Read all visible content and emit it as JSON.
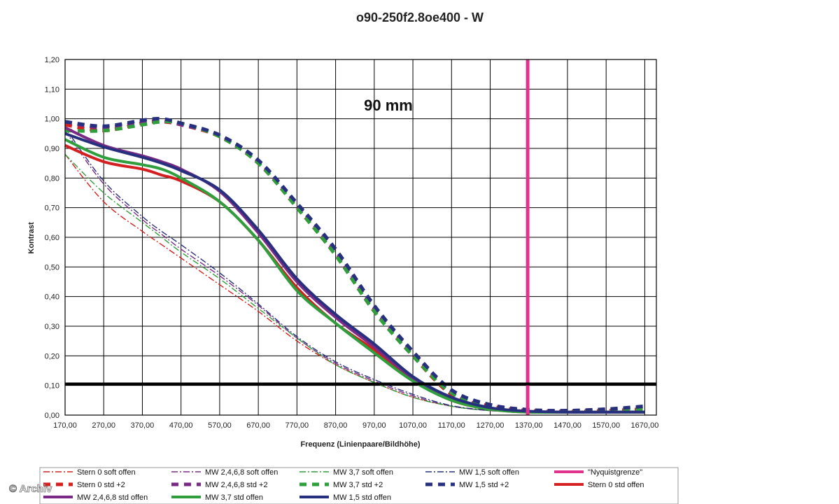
{
  "chart_data": {
    "type": "line",
    "title": "o90-250f2.8oe400 - W",
    "annotation": "90 mm",
    "xlabel": "Frequenz (Linienpaare/Bildhöhe)",
    "ylabel": "Kontrast",
    "xlim": [
      170,
      1700
    ],
    "ylim": [
      0,
      1.2
    ],
    "x_ticks": [
      "170,00",
      "270,00",
      "370,00",
      "470,00",
      "570,00",
      "670,00",
      "770,00",
      "870,00",
      "970,00",
      "1070,00",
      "1170,00",
      "1270,00",
      "1370,00",
      "1470,00",
      "1570,00",
      "1670,00"
    ],
    "y_ticks": [
      "0,00",
      "0,10",
      "0,20",
      "0,30",
      "0,40",
      "0,50",
      "0,60",
      "0,70",
      "0,80",
      "0,90",
      "1,00",
      "1,10",
      "1,20"
    ],
    "grid": true,
    "legend_position": "bottom",
    "credit": "© Archiv",
    "reference_lines": [
      {
        "name": "\"Nyquistgrenze\"",
        "orientation": "vertical",
        "value": 1367,
        "color": "#e0338e"
      },
      {
        "orientation": "horizontal",
        "value": 0.105,
        "color": "#000000"
      }
    ],
    "x": [
      170,
      270,
      370,
      420,
      470,
      570,
      670,
      770,
      870,
      970,
      1070,
      1170,
      1270,
      1370,
      1470,
      1570,
      1670
    ],
    "series": [
      {
        "name": "Stern 0 soft offen",
        "style": "dashdot",
        "color": "#d42020",
        "values": [
          0.88,
          0.72,
          0.62,
          0.575,
          0.53,
          0.44,
          0.35,
          0.25,
          0.17,
          0.11,
          0.06,
          0.03,
          0.015,
          0.01,
          0.01,
          0.01,
          0.01
        ]
      },
      {
        "name": "MW 2,4,6,8 soft offen",
        "style": "dashdot",
        "color": "#7a2a86",
        "values": [
          0.96,
          0.78,
          0.66,
          0.61,
          0.56,
          0.47,
          0.37,
          0.26,
          0.175,
          0.115,
          0.065,
          0.03,
          0.015,
          0.01,
          0.01,
          0.01,
          0.01
        ]
      },
      {
        "name": "MW 3,7 soft offen",
        "style": "dashdot",
        "color": "#2f9e3c",
        "values": [
          0.88,
          0.75,
          0.65,
          0.6,
          0.55,
          0.46,
          0.36,
          0.26,
          0.17,
          0.11,
          0.06,
          0.03,
          0.015,
          0.01,
          0.01,
          0.01,
          0.01
        ]
      },
      {
        "name": "MW 1,5 soft offen",
        "style": "dashdot",
        "color": "#27307e",
        "values": [
          0.97,
          0.79,
          0.67,
          0.62,
          0.575,
          0.48,
          0.375,
          0.265,
          0.18,
          0.12,
          0.07,
          0.032,
          0.016,
          0.01,
          0.01,
          0.01,
          0.01
        ]
      },
      {
        "name": "Stern 0 std +2",
        "style": "dash",
        "color": "#d42020",
        "values": [
          0.98,
          0.96,
          0.985,
          0.99,
          0.98,
          0.94,
          0.85,
          0.7,
          0.54,
          0.35,
          0.2,
          0.07,
          0.03,
          0.015,
          0.012,
          0.015,
          0.02
        ]
      },
      {
        "name": "MW 2,4,6,8 std +2",
        "style": "dash",
        "color": "#7a2a86",
        "values": [
          0.99,
          0.97,
          0.99,
          0.995,
          0.98,
          0.945,
          0.855,
          0.71,
          0.55,
          0.36,
          0.21,
          0.08,
          0.035,
          0.018,
          0.015,
          0.02,
          0.025
        ]
      },
      {
        "name": "MW 3,7 std +2",
        "style": "dash",
        "color": "#2f9e3c",
        "values": [
          0.96,
          0.96,
          0.98,
          0.99,
          0.985,
          0.94,
          0.85,
          0.7,
          0.54,
          0.35,
          0.2,
          0.075,
          0.03,
          0.015,
          0.012,
          0.018,
          0.02
        ]
      },
      {
        "name": "MW 1,5 std +2",
        "style": "dash",
        "color": "#27307e",
        "values": [
          0.99,
          0.975,
          0.995,
          1.0,
          0.985,
          0.945,
          0.86,
          0.715,
          0.56,
          0.37,
          0.215,
          0.085,
          0.035,
          0.018,
          0.015,
          0.02,
          0.03
        ]
      },
      {
        "name": "Stern 0 std offen",
        "style": "solid",
        "color": "#d42020",
        "values": [
          0.91,
          0.855,
          0.83,
          0.81,
          0.79,
          0.72,
          0.59,
          0.43,
          0.31,
          0.22,
          0.12,
          0.05,
          0.02,
          0.01,
          0.01,
          0.01,
          0.01
        ]
      },
      {
        "name": "MW 2,4,6,8 std offen",
        "style": "solid",
        "color": "#7a2a86",
        "values": [
          0.97,
          0.91,
          0.875,
          0.855,
          0.83,
          0.755,
          0.615,
          0.45,
          0.33,
          0.23,
          0.125,
          0.055,
          0.022,
          0.012,
          0.01,
          0.01,
          0.01
        ]
      },
      {
        "name": "MW 3,7 std offen",
        "style": "solid",
        "color": "#2f9e3c",
        "values": [
          0.93,
          0.87,
          0.845,
          0.83,
          0.8,
          0.72,
          0.59,
          0.42,
          0.31,
          0.21,
          0.115,
          0.05,
          0.02,
          0.01,
          0.01,
          0.01,
          0.01
        ]
      },
      {
        "name": "MW 1,5 std offen",
        "style": "solid",
        "color": "#27307e",
        "values": [
          0.95,
          0.905,
          0.87,
          0.85,
          0.825,
          0.76,
          0.625,
          0.46,
          0.34,
          0.24,
          0.13,
          0.06,
          0.025,
          0.013,
          0.01,
          0.01,
          0.01
        ]
      }
    ],
    "legend": [
      "Stern 0 soft offen",
      "MW 2,4,6,8 soft offen",
      "MW 3,7 soft offen",
      "MW 1,5 soft offen",
      "\"Nyquistgrenze\"",
      "Stern 0 std +2",
      "MW 2,4,6,8 std +2",
      "MW 3,7 std +2",
      "MW 1,5 std +2",
      "Stern 0 std offen",
      "MW 2,4,6,8 std offen",
      "MW 3,7 std offen",
      "MW 1,5 std offen"
    ]
  }
}
